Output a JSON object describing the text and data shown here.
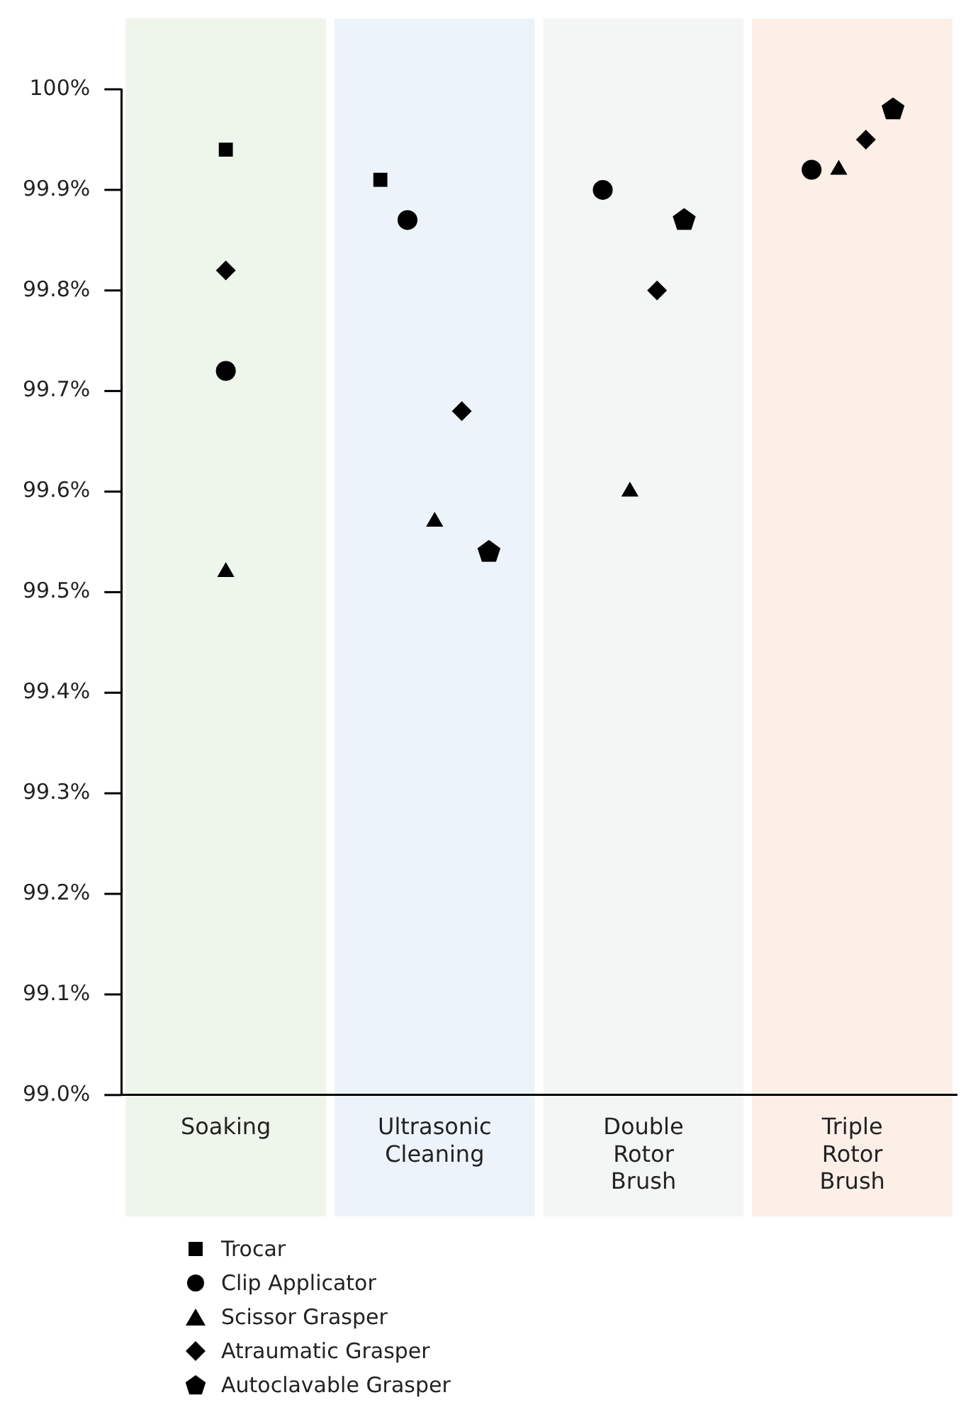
{
  "chart_data": {
    "type": "scatter",
    "categories": [
      "Soaking",
      "Ultrasonic Cleaning",
      "Double Rotor Brush",
      "Triple Rotor Brush"
    ],
    "series": [
      {
        "name": "Trocar",
        "color": "#000000",
        "marker": "square",
        "values": [
          99.94,
          99.91,
          null,
          null
        ]
      },
      {
        "name": "Clip Applicator",
        "color": "#000000",
        "marker": "circle",
        "values": [
          99.72,
          99.87,
          99.9,
          99.92
        ]
      },
      {
        "name": "Scissor Grasper",
        "color": "#000000",
        "marker": "triangle",
        "values": [
          99.52,
          99.57,
          99.6,
          99.92
        ]
      },
      {
        "name": "Atraumatic Grasper",
        "color": "#000000",
        "marker": "diamond",
        "values": [
          99.82,
          99.68,
          99.8,
          99.95
        ]
      },
      {
        "name": "Autoclavable Grasper",
        "color": "#000000",
        "values": [
          null,
          99.54,
          99.87,
          99.98
        ]
      }
    ],
    "bands": [
      {
        "axis": "x",
        "from": "Soaking",
        "to": "Soaking",
        "color": "#eef5ea"
      },
      {
        "axis": "x",
        "from": "Ultrasonic Cleaning",
        "to": "Ultrasonic Cleaning",
        "color": "#edf3fb"
      },
      {
        "axis": "x",
        "from": "Double Rotor Brush",
        "to": "Double Rotor Brush",
        "color": "#f4f5f5"
      },
      {
        "axis": "x",
        "from": "Triple Rotor Brush",
        "to": "Triple Rotor Brush",
        "color": "#fbefe7"
      }
    ],
    "ylim": [
      99.0,
      100.0
    ],
    "yticks": [
      {
        "value": 99.0,
        "label": "99.0%"
      },
      {
        "value": 99.1,
        "label": "99.1%"
      },
      {
        "value": 99.2,
        "label": "99.2%"
      },
      {
        "value": 99.3,
        "label": "99.3%"
      },
      {
        "value": 99.4,
        "label": "99.4%"
      },
      {
        "value": 99.5,
        "label": "99.5%"
      },
      {
        "value": 99.6,
        "label": "99.6%"
      },
      {
        "value": 99.7,
        "label": "99.7%"
      },
      {
        "value": 99.8,
        "label": "99.8%"
      },
      {
        "value": 99.9,
        "label": "99.9%"
      },
      {
        "value": 100.0,
        "label": "100%"
      }
    ],
    "grid": false,
    "legend": "bottom left"
  }
}
